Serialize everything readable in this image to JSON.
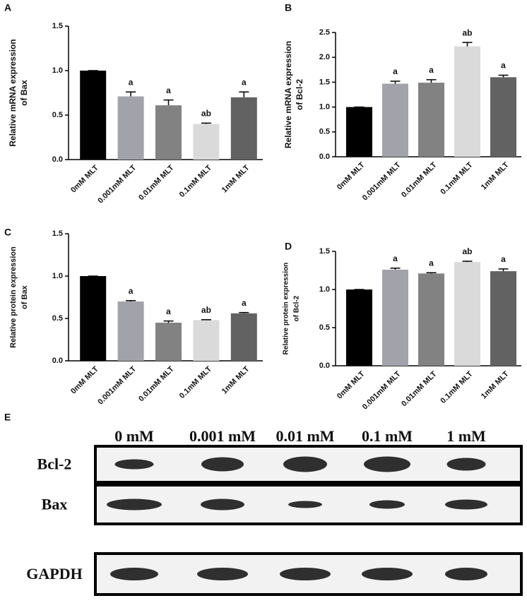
{
  "chart_data": [
    {
      "type": "bar",
      "panel_label": "A",
      "ylabel": [
        "Relative mRNA expression",
        "of Bax"
      ],
      "categories": [
        "0mM MLT",
        "0.001mM MLT",
        "0.01mM  MLT",
        "0.1mM MLT",
        "1mM MLT"
      ],
      "values": [
        1.0,
        0.71,
        0.61,
        0.4,
        0.7
      ],
      "errors": [
        0,
        0.05,
        0.06,
        0.01,
        0.06
      ],
      "annotations": [
        null,
        "a",
        "a",
        "ab",
        "a"
      ],
      "colors": [
        "#000000",
        "#a2a2aa",
        "#828282",
        "#dadada",
        "#626262"
      ],
      "ylim": [
        0,
        1.5
      ],
      "yticks": [
        {
          "value": 0,
          "label": "0.0"
        },
        0.5,
        {
          "value": 1,
          "label": "1.0"
        },
        1.5
      ]
    },
    {
      "type": "bar",
      "panel_label": "B",
      "ylabel": [
        "Relative mRNA expression",
        "of Bcl-2"
      ],
      "categories": [
        "0mM MLT",
        "0.001mM MLT",
        "0.01mM  MLT",
        "0.1mM MLT",
        "1mM MLT"
      ],
      "values": [
        1.0,
        1.47,
        1.49,
        2.22,
        1.6
      ],
      "errors": [
        0,
        0.05,
        0.06,
        0.08,
        0.04
      ],
      "annotations": [
        null,
        "a",
        "a",
        "ab",
        "a"
      ],
      "colors": [
        "#000000",
        "#a2a2aa",
        "#828282",
        "#dadada",
        "#626262"
      ],
      "ylim": [
        0,
        2.5
      ],
      "yticks": [
        {
          "value": 0,
          "label": "0.0"
        },
        0.5,
        {
          "value": 1,
          "label": "1.0"
        },
        1.5,
        {
          "value": 2,
          "label": "2.0"
        },
        2.5
      ]
    },
    {
      "type": "bar",
      "panel_label": "C",
      "ylabel": [
        "Relative protein expression",
        "of Bax"
      ],
      "categories": [
        "0mM MLT",
        "0.001mM MLT",
        "0.01mM MLT",
        "0.1mM MLT",
        "1mM MLT"
      ],
      "values": [
        1.0,
        0.7,
        0.45,
        0.48,
        0.56
      ],
      "errors": [
        0,
        0.01,
        0.02,
        0.005,
        0.01
      ],
      "annotations": [
        null,
        "a",
        "a",
        "ab",
        "a"
      ],
      "colors": [
        "#000000",
        "#a2a2aa",
        "#828282",
        "#dadada",
        "#626262"
      ],
      "ylim": [
        0,
        1.5
      ],
      "yticks": [
        {
          "value": 0,
          "label": "0.0"
        },
        0.5,
        {
          "value": 1,
          "label": "1.0"
        },
        1.5
      ]
    },
    {
      "type": "bar",
      "panel_label": "D",
      "ylabel": [
        "Relative protein expression",
        "of Bcl-2"
      ],
      "categories": [
        "0mM MLT",
        "0.001mM MLT",
        "0.01mM MLT",
        "0.1mM MLT",
        "1mM MLT"
      ],
      "values": [
        1.0,
        1.26,
        1.21,
        1.36,
        1.24
      ],
      "errors": [
        0,
        0.02,
        0.01,
        0.01,
        0.03
      ],
      "annotations": [
        null,
        "a",
        "a",
        "ab",
        "a"
      ],
      "colors": [
        "#000000",
        "#a2a2aa",
        "#828282",
        "#dadada",
        "#626262"
      ],
      "ylim": [
        0,
        1.5
      ],
      "yticks": [
        {
          "value": 0,
          "label": "0.0"
        },
        0.5,
        {
          "value": 1,
          "label": "1.0"
        },
        1.5
      ]
    }
  ],
  "blot": {
    "panel_label": "E",
    "lanes": [
      "0 mM",
      "0.001 mM",
      "0.01 mM",
      "0.1 mM",
      "1 mM"
    ],
    "rows": [
      "Bcl-2",
      "Bax",
      "GAPDH"
    ]
  }
}
